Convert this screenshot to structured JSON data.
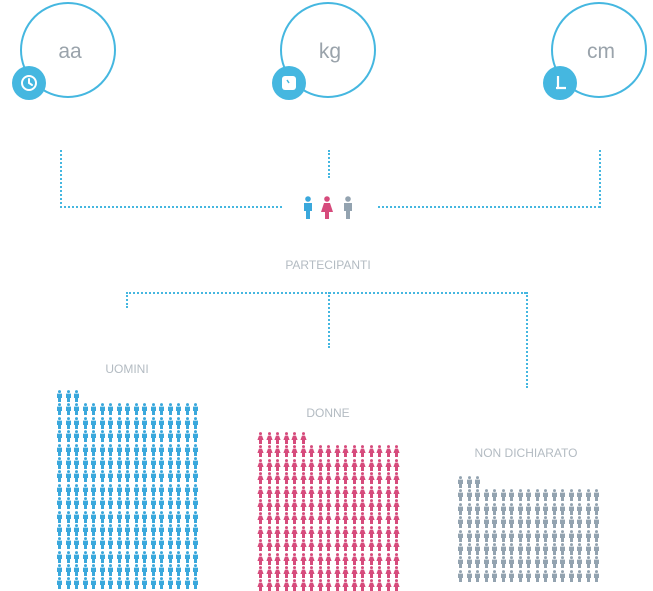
{
  "stats": [
    {
      "value": "",
      "unit": "aa",
      "caption": "",
      "icon": "clock-icon"
    },
    {
      "value": "",
      "unit": "kg",
      "caption": "",
      "icon": "scale-icon"
    },
    {
      "value": "",
      "unit": "cm",
      "caption": "",
      "icon": "height-icon"
    }
  ],
  "participants": {
    "count": "",
    "label": "PARTECIPANTI"
  },
  "groups": [
    {
      "count": "",
      "label": "UOMINI",
      "color": "#3aa8dc"
    },
    {
      "count": "",
      "label": "DONNE",
      "color": "#d64b7c"
    },
    {
      "count": "",
      "label": "NON DICHIARATO",
      "color": "#93a3b0"
    }
  ],
  "colors": {
    "accent": "#45b7e0",
    "caption": "#dfe57a",
    "male": "#3aa8dc",
    "female": "#d64b7c",
    "neutral": "#93a3b0"
  }
}
